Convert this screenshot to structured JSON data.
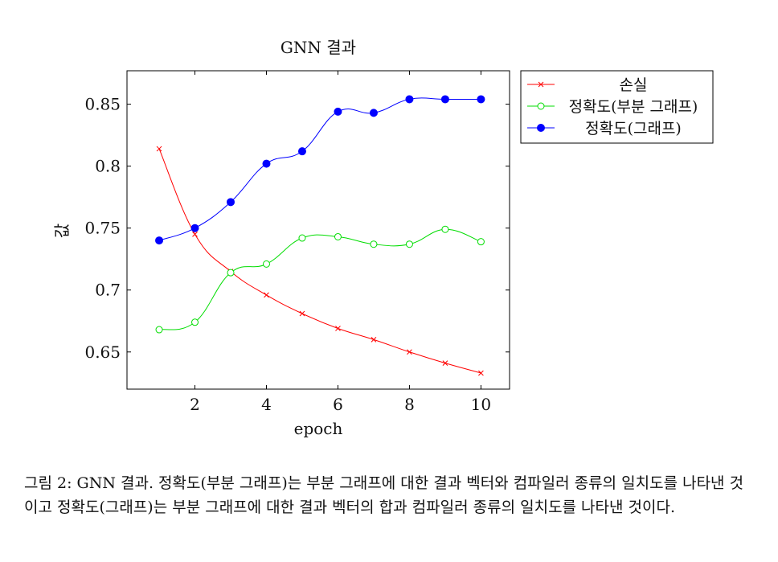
{
  "chart_data": {
    "type": "line",
    "title": "GNN 결과",
    "xlabel": "epoch",
    "ylabel": "값",
    "xlim": [
      0.1,
      10.8
    ],
    "ylim": [
      0.62,
      0.877
    ],
    "xticks": [
      2,
      4,
      6,
      8,
      10
    ],
    "yticks": [
      0.65,
      0.7,
      0.75,
      0.8,
      0.85
    ],
    "ytick_labels": [
      "0.65",
      "0.7",
      "0.75",
      "0.8",
      "0.85"
    ],
    "grid": false,
    "legend_position": "outside-top-right",
    "x": [
      1,
      2,
      3,
      4,
      5,
      6,
      7,
      8,
      9,
      10
    ],
    "series": [
      {
        "name": "손실",
        "color": "#ff0000",
        "marker": "cross",
        "values": [
          0.814,
          0.745,
          0.715,
          0.696,
          0.681,
          0.669,
          0.66,
          0.65,
          0.641,
          0.633
        ]
      },
      {
        "name": "정확도(부분 그래프)",
        "color": "#00dd00",
        "marker": "open-circle",
        "values": [
          0.668,
          0.674,
          0.714,
          0.721,
          0.742,
          0.743,
          0.737,
          0.737,
          0.749,
          0.739
        ]
      },
      {
        "name": "정확도(그래프)",
        "color": "#0000ff",
        "marker": "filled-circle",
        "values": [
          0.74,
          0.75,
          0.771,
          0.802,
          0.812,
          0.844,
          0.843,
          0.854,
          0.854,
          0.854
        ]
      }
    ]
  },
  "caption": "그림 2: GNN 결과. 정확도(부분 그래프)는 부분 그래프에 대한 결과 벡터와 컴파일러 종류의 일치도를 나타낸 것이고 정확도(그래프)는 부분 그래프에 대한 결과 벡터의 합과 컴파일러 종류의 일치도를 나타낸 것이다."
}
